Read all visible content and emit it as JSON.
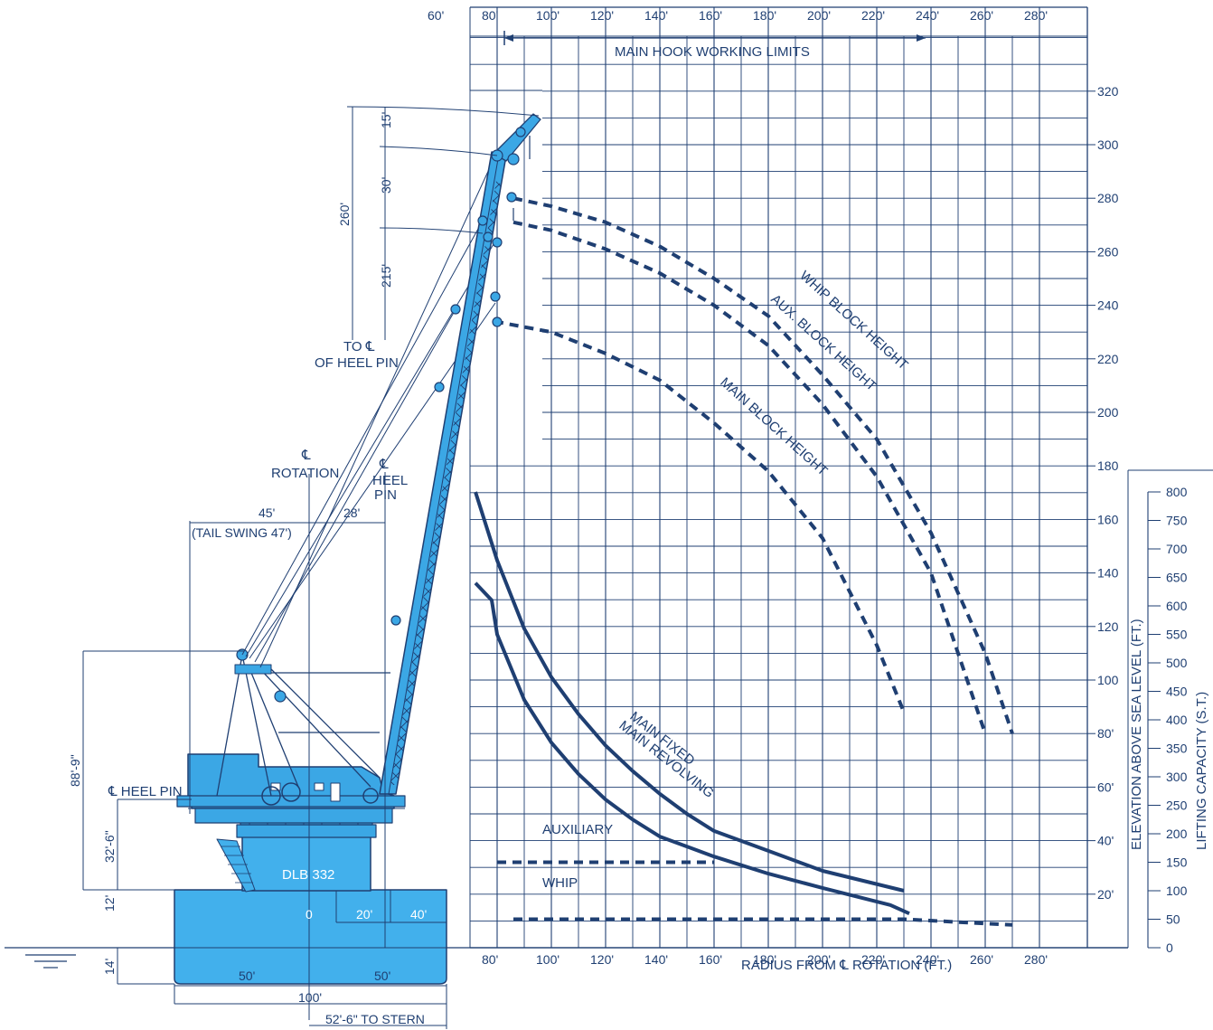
{
  "title": "MAIN HOOK WORKING LIMITS",
  "axes": {
    "radius_label": "RADIUS FROM ℄ ROTATION (FT.)",
    "elevation_label": "ELEVATION ABOVE SEA LEVEL (FT.)",
    "capacity_label": "LIFTING CAPACITY (S.T.)",
    "radius_ticks": [
      "60'",
      "80'",
      "100'",
      "120'",
      "140'",
      "160'",
      "180'",
      "200'",
      "220'",
      "240'",
      "260'",
      "280'"
    ],
    "elevation_ticks": [
      "320",
      "300",
      "280",
      "260",
      "240",
      "220",
      "200",
      "180",
      "160",
      "140",
      "120",
      "100",
      "80'",
      "60'",
      "40'",
      "20'"
    ],
    "capacity_ticks": [
      "800",
      "750",
      "700",
      "650",
      "600",
      "550",
      "500",
      "450",
      "400",
      "350",
      "300",
      "250",
      "200",
      "150",
      "100",
      "50",
      "0"
    ]
  },
  "curve_labels": {
    "whip_block": "WHIP BLOCK HEIGHT",
    "aux_block": "AUX. BLOCK HEIGHT",
    "main_block": "MAIN BLOCK HEIGHT",
    "main_fixed": "MAIN FIXED",
    "main_revolving": "MAIN REVOLVING",
    "auxiliary": "AUXILIARY",
    "whip": "WHIP"
  },
  "crane": {
    "vessel_name": "DLB 332",
    "boom_segments": [
      "15'",
      "30'",
      "215'"
    ],
    "boom_total": "260'",
    "heel_pin_ref": "TO ℄\nOF HEEL PIN",
    "rotation_label_1": "℄",
    "rotation_label_2": "ROTATION",
    "heel_label_1": "℄",
    "heel_label_2": "HEEL",
    "heel_label_3": "PIN",
    "tail_swing_radius": "45'",
    "tail_swing_note": "(TAIL SWING 47')",
    "heel_offset": "28'",
    "height_to_gantry": "88'-9\"",
    "heel_pin_label": "℄ HEEL PIN",
    "heel_pin_height": "32'-6\"",
    "deck_height": "12'",
    "draft": "14'",
    "deck_marks": [
      "0",
      "20'",
      "40'"
    ],
    "half_beam_left": "50'",
    "half_beam_right": "50'",
    "beam_total": "100'",
    "to_stern": "52'-6\" TO STERN"
  },
  "colors": {
    "navy": "#1f3f72",
    "crane_blue": "#3ba7e5",
    "hull_blue": "#42b0ec"
  },
  "chart_data": {
    "type": "line",
    "xlabel": "RADIUS FROM ℄ ROTATION (FT.)",
    "ylabel": "ELEVATION ABOVE SEA LEVEL (FT.)",
    "y2label": "LIFTING CAPACITY (S.T.)",
    "xlim": [
      60,
      280
    ],
    "ylim": [
      0,
      330
    ],
    "y2lim": [
      0,
      800
    ],
    "series": [
      {
        "name": "WHIP BLOCK HEIGHT",
        "axis": "elevation",
        "style": "dashed",
        "x": [
          86,
          100,
          120,
          140,
          160,
          180,
          200,
          220,
          240,
          260,
          270
        ],
        "y": [
          280,
          277,
          271,
          262,
          250,
          236,
          214,
          190,
          155,
          110,
          80
        ]
      },
      {
        "name": "AUX. BLOCK HEIGHT",
        "axis": "elevation",
        "style": "dashed",
        "x": [
          86,
          100,
          120,
          140,
          160,
          180,
          200,
          220,
          240,
          260
        ],
        "y": [
          271,
          268,
          261,
          252,
          240,
          225,
          203,
          176,
          140,
          80
        ]
      },
      {
        "name": "MAIN BLOCK HEIGHT",
        "axis": "elevation",
        "style": "dashed",
        "x": [
          79,
          100,
          120,
          140,
          160,
          180,
          200,
          220,
          230
        ],
        "y": [
          234,
          230,
          222,
          212,
          196,
          178,
          153,
          113,
          88
        ]
      },
      {
        "name": "MAIN FIXED",
        "axis": "capacity",
        "style": "solid",
        "x": [
          72,
          80,
          90,
          100,
          110,
          120,
          130,
          140,
          150,
          160,
          180,
          200,
          230
        ],
        "y": [
          800,
          680,
          560,
          475,
          410,
          355,
          310,
          270,
          235,
          205,
          170,
          135,
          100
        ]
      },
      {
        "name": "MAIN REVOLVING",
        "axis": "capacity",
        "style": "solid",
        "x": [
          72,
          78,
          80,
          90,
          100,
          110,
          120,
          130,
          140,
          160,
          180,
          200,
          225,
          232
        ],
        "y": [
          640,
          610,
          550,
          435,
          360,
          305,
          260,
          225,
          195,
          160,
          130,
          105,
          75,
          60
        ]
      },
      {
        "name": "AUXILIARY",
        "axis": "capacity",
        "style": "dashed",
        "x": [
          80,
          160
        ],
        "y": [
          150,
          150
        ]
      },
      {
        "name": "WHIP",
        "axis": "capacity",
        "style": "dashed",
        "x": [
          86,
          230,
          270
        ],
        "y": [
          50,
          50,
          40
        ]
      }
    ]
  }
}
